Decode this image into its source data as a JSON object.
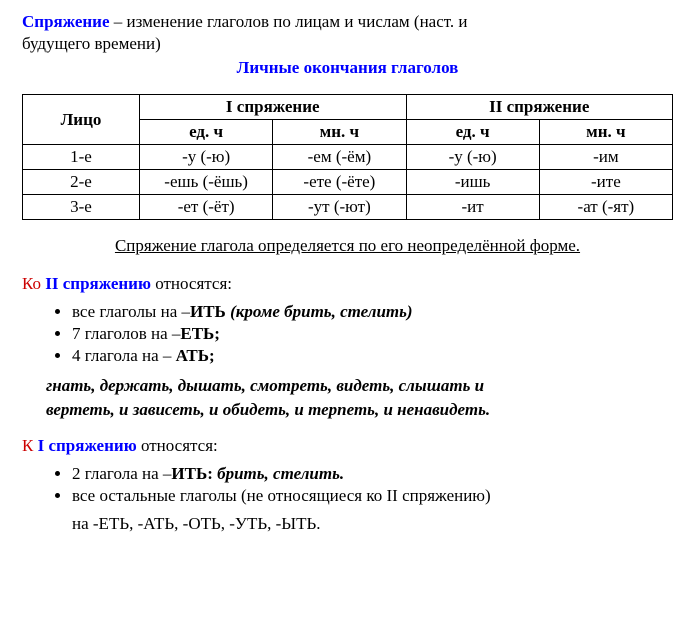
{
  "definition": {
    "term": "Спряжение",
    "text1": " – изменение глаголов по лицам и числам (наст. и",
    "text2": "будущего времени)"
  },
  "subtitle": "Личные окончания глаголов",
  "table": {
    "headers": {
      "person": "Лицо",
      "conj1": "I спряжение",
      "conj2": "II спряжение",
      "sg": "ед. ч",
      "pl": "мн. ч"
    },
    "rows": [
      {
        "person": "1-е",
        "c1sg": "-у (-ю)",
        "c1pl": "-ем (-ём)",
        "c2sg": "-у (-ю)",
        "c2pl": "-им"
      },
      {
        "person": "2-е",
        "c1sg": "-ешь (-ёшь)",
        "c1pl": "-ете (-ёте)",
        "c2sg": "-ишь",
        "c2pl": "-ите"
      },
      {
        "person": "3-е",
        "c1sg": "-ет (-ёт)",
        "c1pl": "-ут (-ют)",
        "c2sg": "-ит",
        "c2pl": "-ат (-ят)"
      }
    ]
  },
  "rule": "Спряжение глагола определяется по его неопределённой форме.",
  "section2": {
    "prefix": "Ко ",
    "conj": "II спряжению",
    "suffix": " относятся:",
    "items": [
      {
        "text": "все глаголы на –",
        "ending": "ИТЬ ",
        "extra": "(кроме брить, стелить)"
      },
      {
        "text": "7 глаголов на –",
        "ending": "ЕТЬ;"
      },
      {
        "text": "4 глагола на – ",
        "ending": "АТЬ;"
      }
    ],
    "poem1": "гнать, держать, дышать, смотреть, видеть, слышать и",
    "poem2": "вертеть, и зависеть, и обидеть, и терпеть, и ненавидеть."
  },
  "section1": {
    "prefix": "К  ",
    "conj": "I спряжению",
    "suffix": " относятся:",
    "items": [
      {
        "text": "2 глагола на –",
        "ending": "ИТЬ: ",
        "extra": "брить, стелить."
      },
      {
        "text": "все остальные глаголы (не относящиеся ко II спряжению)"
      }
    ],
    "endings": "на -ЕТЬ, -АТЬ, -ОТЬ, -УТЬ, -ЫТЬ."
  },
  "colors": {
    "blue": "#0000ff",
    "red": "#cc0000",
    "text": "#000000",
    "bg": "#ffffff"
  }
}
